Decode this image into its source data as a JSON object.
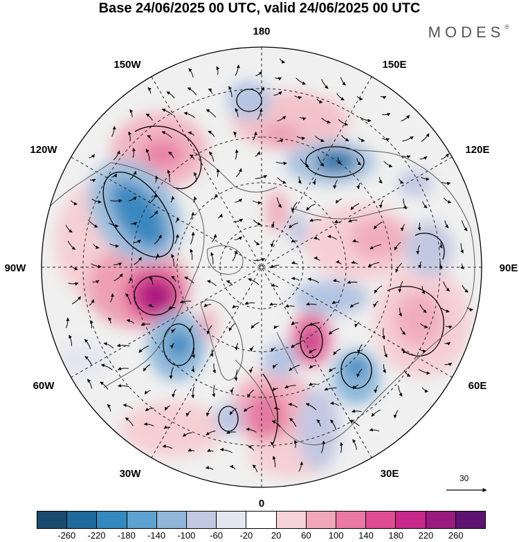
{
  "title": "Base 24/06/2025 00 UTC, valid 24/06/2025 00 UTC",
  "brand": "MODES",
  "brand_mark": "®",
  "map": {
    "projection": "north-polar-stereographic",
    "longitude_labels": [
      {
        "text": "180",
        "lon": 180
      },
      {
        "text": "150E",
        "lon": 150
      },
      {
        "text": "120E",
        "lon": 120
      },
      {
        "text": "90E",
        "lon": 90
      },
      {
        "text": "60E",
        "lon": 60
      },
      {
        "text": "30E",
        "lon": 30
      },
      {
        "text": "0",
        "lon": 0
      },
      {
        "text": "30W",
        "lon": -30
      },
      {
        "text": "60W",
        "lon": -60
      },
      {
        "text": "90W",
        "lon": -90
      },
      {
        "text": "120W",
        "lon": -120
      },
      {
        "text": "150W",
        "lon": -150
      }
    ],
    "colors": {
      "ocean_land": "#f0f0f0",
      "grid": "#222222",
      "coast": "#5a5a5a"
    }
  },
  "vector_reference": {
    "label": "30"
  },
  "colorbar": {
    "colors": [
      "#1a4a6e",
      "#1f6a9a",
      "#3388c0",
      "#5ea2cf",
      "#92b6d9",
      "#c2c8e2",
      "#e6e6f1",
      "#ffffff",
      "#f6d4d8",
      "#f0a8b8",
      "#eb7aa3",
      "#de4d93",
      "#c8288a",
      "#9a1a7d",
      "#5e1272"
    ],
    "labels": [
      "-260",
      "-220",
      "-180",
      "-140",
      "-100",
      "-60",
      "-20",
      "20",
      "60",
      "100",
      "140",
      "180",
      "220",
      "260"
    ]
  }
}
